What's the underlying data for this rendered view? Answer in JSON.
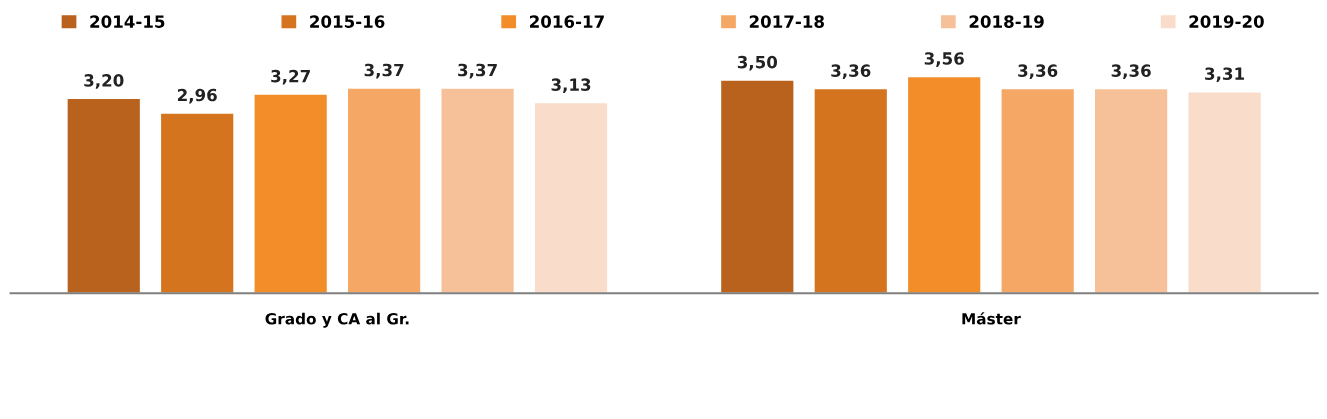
{
  "chart_data": {
    "type": "bar",
    "categories": [
      "Grado y CA al Gr.",
      "Máster"
    ],
    "series": [
      {
        "name": "2014-15",
        "color": "#b9621e",
        "values": [
          3.2,
          3.5
        ],
        "value_labels": [
          "3,20",
          "3,50"
        ]
      },
      {
        "name": "2015-16",
        "color": "#d5741f",
        "values": [
          2.96,
          3.36
        ],
        "value_labels": [
          "2,96",
          "3,36"
        ]
      },
      {
        "name": "2016-17",
        "color": "#f28d29",
        "values": [
          3.27,
          3.56
        ],
        "value_labels": [
          "3,27",
          "3,56"
        ]
      },
      {
        "name": "2017-18",
        "color": "#f5a865",
        "values": [
          3.37,
          3.36
        ],
        "value_labels": [
          "3,37",
          "3,36"
        ]
      },
      {
        "name": "2018-19",
        "color": "#f6c198",
        "values": [
          3.37,
          3.36
        ],
        "value_labels": [
          "3,37",
          "3,36"
        ]
      },
      {
        "name": "2019-20",
        "color": "#f9dcc9",
        "values": [
          3.13,
          3.31
        ],
        "value_labels": [
          "3,13",
          "3,31"
        ]
      }
    ],
    "legend": "top",
    "tick_labels": "x"
  }
}
